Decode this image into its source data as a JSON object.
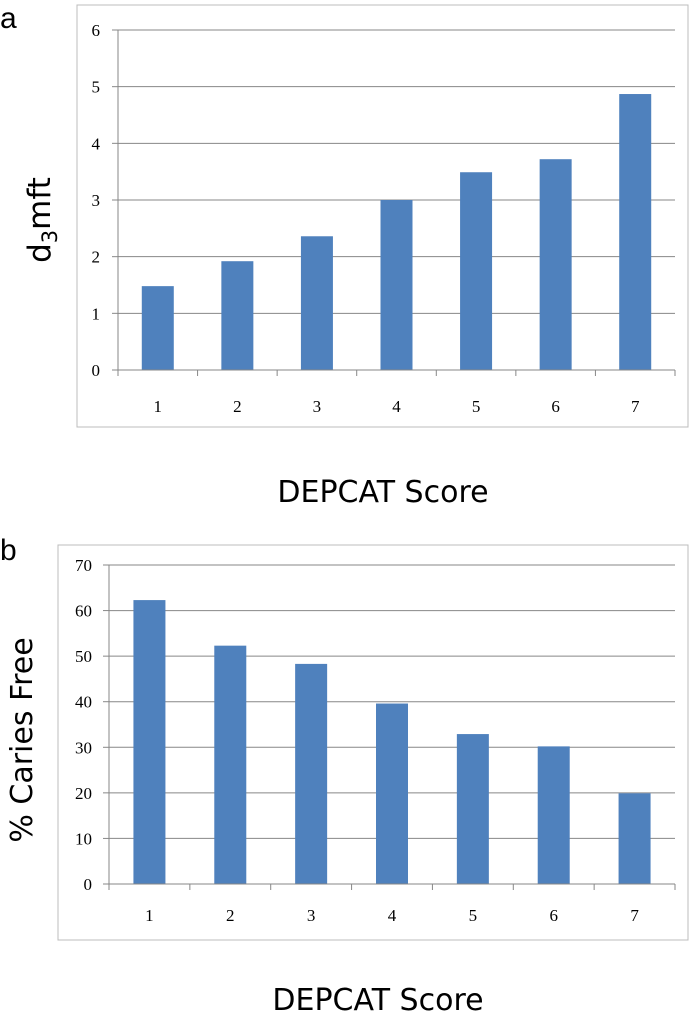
{
  "panels": [
    {
      "letter": "a",
      "ylabel_main": "d",
      "ylabel_sub": "3",
      "ylabel_rest": "mft",
      "xlabel": "DEPCAT Score"
    },
    {
      "letter": "b",
      "ylabel": "% Caries Free",
      "xlabel": "DEPCAT Score"
    }
  ],
  "colors": {
    "bar": "#4f81bd",
    "grid": "#878787",
    "frame": "#bcbcbc",
    "axis": "#878787"
  },
  "chart_data": [
    {
      "type": "bar",
      "title": "",
      "xlabel": "DEPCAT Score",
      "ylabel": "d3mft",
      "categories": [
        "1",
        "2",
        "3",
        "4",
        "5",
        "6",
        "7"
      ],
      "values": [
        1.48,
        1.92,
        2.36,
        3.0,
        3.49,
        3.72,
        4.87
      ],
      "ylim": [
        0,
        6
      ],
      "yticks": [
        0,
        1,
        2,
        3,
        4,
        5,
        6
      ],
      "grid": true,
      "legend": "none"
    },
    {
      "type": "bar",
      "title": "",
      "xlabel": "DEPCAT Score",
      "ylabel": "% Caries Free",
      "categories": [
        "1",
        "2",
        "3",
        "4",
        "5",
        "6",
        "7"
      ],
      "values": [
        62.3,
        52.3,
        48.3,
        39.6,
        32.9,
        30.2,
        19.9
      ],
      "ylim": [
        0,
        70
      ],
      "yticks": [
        0,
        10,
        20,
        30,
        40,
        50,
        60,
        70
      ],
      "grid": true,
      "legend": "none"
    }
  ]
}
